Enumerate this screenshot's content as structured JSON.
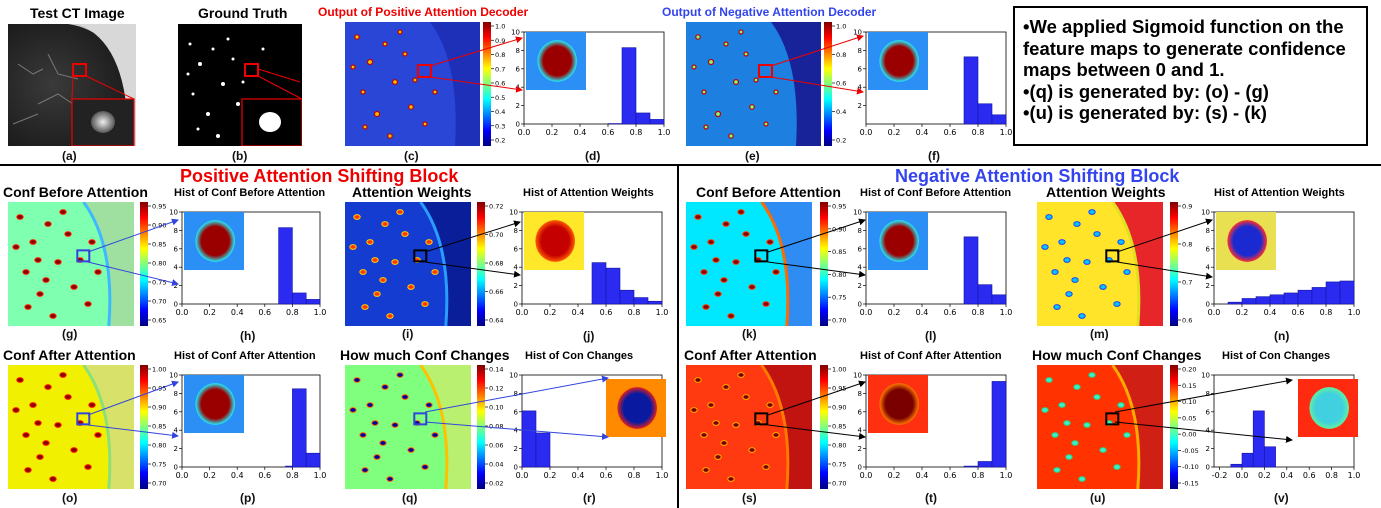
{
  "top": {
    "a_title": "Test CT Image",
    "b_title": "Ground Truth",
    "c_title": "Output of Positive Attention Decoder",
    "e_title": "Output of Negative Attention Decoder"
  },
  "note": [
    "We applied Sigmoid function on the feature maps to generate confidence maps between 0 and 1.",
    "(q) is generated by: (o) - (g)",
    "(u) is generated by: (s) - (k)"
  ],
  "sections": {
    "positive": "Positive Attention Shifting Block",
    "negative": "Negative Attention Shifting Block"
  },
  "panel_titles": {
    "g": "Conf Before Attention",
    "h": "Hist of Conf Before Attention",
    "i": "Attention Weights",
    "j": "Hist of Attention Weights",
    "o": "Conf After Attention",
    "p": "Hist of Conf After Attention",
    "q": "How much Conf Changes",
    "r": "Hist of Con Changes",
    "k": "Conf Before Attention",
    "l": "Hist of Conf Before Attention",
    "m": "Attention Weights",
    "n": "Hist of Attention Weights",
    "s": "Conf After Attention",
    "t": "Hist of Conf After Attention",
    "u": "How much Conf Changes",
    "v": "Hist of Con Changes"
  },
  "captions": [
    "(a)",
    "(b)",
    "(c)",
    "(d)",
    "(e)",
    "(f)",
    "(g)",
    "(h)",
    "(i)",
    "(j)",
    "(k)",
    "(l)",
    "(m)",
    "(n)",
    "(o)",
    "(p)",
    "(q)",
    "(r)",
    "(s)",
    "(t)",
    "(u)",
    "(v)"
  ],
  "colorbars": {
    "c": [
      "1.0",
      "0.9",
      "0.8",
      "0.7",
      "0.6",
      "0.5",
      "0.4",
      "0.3",
      "0.2"
    ],
    "e": [
      "1.0",
      "0.8",
      "0.6",
      "0.4",
      "0.2"
    ],
    "g": [
      "0.95",
      "0.90",
      "0.85",
      "0.80",
      "0.75",
      "0.70",
      "0.65"
    ],
    "i": [
      "0.72",
      "0.70",
      "0.68",
      "0.66",
      "0.64"
    ],
    "o": [
      "1.00",
      "0.95",
      "0.90",
      "0.85",
      "0.80",
      "0.75",
      "0.70"
    ],
    "q": [
      "0.14",
      "0.12",
      "0.10",
      "0.08",
      "0.06",
      "0.04",
      "0.02"
    ],
    "k": [
      "0.95",
      "0.90",
      "0.85",
      "0.80",
      "0.75",
      "0.70"
    ],
    "m": [
      "0.9",
      "0.8",
      "0.7",
      "0.6"
    ],
    "s": [
      "1.00",
      "0.95",
      "0.90",
      "0.85",
      "0.80",
      "0.75",
      "0.70"
    ],
    "u": [
      "0.20",
      "0.15",
      "0.10",
      "0.05",
      "0.00",
      "-0.05",
      "-0.10",
      "-0.15"
    ]
  },
  "chart_data": [
    {
      "id": "d",
      "type": "bar",
      "xlim": [
        0,
        1
      ],
      "ylim": [
        0,
        10
      ],
      "xticks": [
        "0.0",
        "0.2",
        "0.4",
        "0.6",
        "0.8",
        "1.0"
      ],
      "yticks": [
        "0",
        "2",
        "4",
        "6",
        "8",
        "10"
      ],
      "bins": [
        [
          0.6,
          0.7,
          0.05
        ],
        [
          0.7,
          0.8,
          8.3
        ],
        [
          0.8,
          0.9,
          1.2
        ],
        [
          0.9,
          1.0,
          0.5
        ]
      ],
      "inset": "red-blob"
    },
    {
      "id": "f",
      "type": "bar",
      "xlim": [
        0,
        1
      ],
      "ylim": [
        0,
        10
      ],
      "xticks": [
        "0.0",
        "0.2",
        "0.4",
        "0.6",
        "0.8",
        "1.0"
      ],
      "yticks": [
        "2",
        "4",
        "6",
        "8",
        "10"
      ],
      "bins": [
        [
          0.7,
          0.8,
          7.3
        ],
        [
          0.8,
          0.9,
          2.2
        ],
        [
          0.9,
          1.0,
          1.0
        ]
      ],
      "inset": "red-blob"
    },
    {
      "id": "h",
      "type": "bar",
      "xlim": [
        0,
        1
      ],
      "ylim": [
        0,
        10
      ],
      "xticks": [
        "0.0",
        "0.2",
        "0.4",
        "0.6",
        "0.8",
        "1.0"
      ],
      "yticks": [
        "0",
        "2",
        "4",
        "6",
        "8",
        "10"
      ],
      "bins": [
        [
          0.7,
          0.8,
          8.3
        ],
        [
          0.8,
          0.9,
          1.2
        ],
        [
          0.9,
          1.0,
          0.5
        ]
      ],
      "inset": "red-blob"
    },
    {
      "id": "j",
      "type": "bar",
      "xlim": [
        0,
        1
      ],
      "ylim": [
        0,
        10
      ],
      "xticks": [
        "0.0",
        "0.2",
        "0.4",
        "0.6",
        "0.8",
        "1.0"
      ],
      "yticks": [
        "0",
        "2",
        "4",
        "6",
        "8",
        "10"
      ],
      "bins": [
        [
          0.5,
          0.6,
          4.5
        ],
        [
          0.6,
          0.7,
          3.9
        ],
        [
          0.7,
          0.8,
          1.5
        ],
        [
          0.8,
          0.9,
          0.7
        ],
        [
          0.9,
          1.0,
          0.3
        ]
      ],
      "inset": "red-yellow"
    },
    {
      "id": "l",
      "type": "bar",
      "xlim": [
        0,
        1
      ],
      "ylim": [
        0,
        10
      ],
      "xticks": [
        "0.0",
        "0.2",
        "0.4",
        "0.6",
        "0.8",
        "1.0"
      ],
      "yticks": [
        "0",
        "2",
        "4",
        "6",
        "8",
        "10"
      ],
      "bins": [
        [
          0.7,
          0.8,
          7.3
        ],
        [
          0.8,
          0.9,
          2.1
        ],
        [
          0.9,
          1.0,
          1.0
        ]
      ],
      "inset": "red-blob"
    },
    {
      "id": "n",
      "type": "bar",
      "xlim": [
        0,
        1
      ],
      "ylim": [
        0,
        10
      ],
      "xticks": [
        "0.0",
        "0.2",
        "0.4",
        "0.6",
        "0.8",
        "1.0"
      ],
      "yticks": [
        "0",
        "2",
        "4",
        "6",
        "8",
        "10"
      ],
      "bins": [
        [
          0.1,
          0.2,
          0.2
        ],
        [
          0.2,
          0.3,
          0.6
        ],
        [
          0.3,
          0.4,
          0.8
        ],
        [
          0.4,
          0.5,
          1.0
        ],
        [
          0.5,
          0.6,
          1.2
        ],
        [
          0.6,
          0.7,
          1.5
        ],
        [
          0.7,
          0.8,
          1.8
        ],
        [
          0.8,
          0.9,
          2.4
        ],
        [
          0.9,
          1.0,
          2.5
        ]
      ],
      "inset": "blue-on-yellow"
    },
    {
      "id": "p",
      "type": "bar",
      "xlim": [
        0,
        1
      ],
      "ylim": [
        0,
        10
      ],
      "xticks": [
        "0.0",
        "0.2",
        "0.4",
        "0.6",
        "0.8",
        "1.0"
      ],
      "yticks": [
        "0",
        "2",
        "4",
        "6",
        "8",
        "10"
      ],
      "bins": [
        [
          0.75,
          0.8,
          0.1
        ],
        [
          0.8,
          0.9,
          8.5
        ],
        [
          0.9,
          1.0,
          1.5
        ]
      ],
      "inset": "red-blob"
    },
    {
      "id": "r",
      "type": "bar",
      "xlim": [
        0,
        1
      ],
      "ylim": [
        0,
        10
      ],
      "xticks": [
        "0.0",
        "0.2",
        "0.4",
        "0.6",
        "0.8",
        "1.0"
      ],
      "yticks": [
        "0",
        "2",
        "4",
        "6",
        "8",
        "10"
      ],
      "bins": [
        [
          0.0,
          0.1,
          6.1
        ],
        [
          0.1,
          0.2,
          3.7
        ]
      ],
      "inset": "blue-on-orange"
    },
    {
      "id": "t",
      "type": "bar",
      "xlim": [
        0,
        1
      ],
      "ylim": [
        0,
        10
      ],
      "xticks": [
        "0.0",
        "0.2",
        "0.4",
        "0.6",
        "0.8",
        "1.0"
      ],
      "yticks": [
        "0",
        "2",
        "4",
        "6",
        "8",
        "10"
      ],
      "bins": [
        [
          0.7,
          0.8,
          0.1
        ],
        [
          0.8,
          0.9,
          0.6
        ],
        [
          0.9,
          1.0,
          9.3
        ]
      ],
      "inset": "red-dark"
    },
    {
      "id": "v",
      "type": "bar",
      "xlim": [
        -0.25,
        1
      ],
      "ylim": [
        0,
        10
      ],
      "xticks": [
        "-0.2",
        "0.0",
        "0.2",
        "0.4",
        "0.6",
        "0.8",
        "1.0"
      ],
      "yticks": [
        "0",
        "2",
        "4",
        "6",
        "8",
        "10"
      ],
      "bins": [
        [
          -0.1,
          0.0,
          0.3
        ],
        [
          0.0,
          0.1,
          1.5
        ],
        [
          0.1,
          0.2,
          6.1
        ],
        [
          0.2,
          0.3,
          2.2
        ]
      ],
      "inset": "cyan-on-red"
    }
  ]
}
